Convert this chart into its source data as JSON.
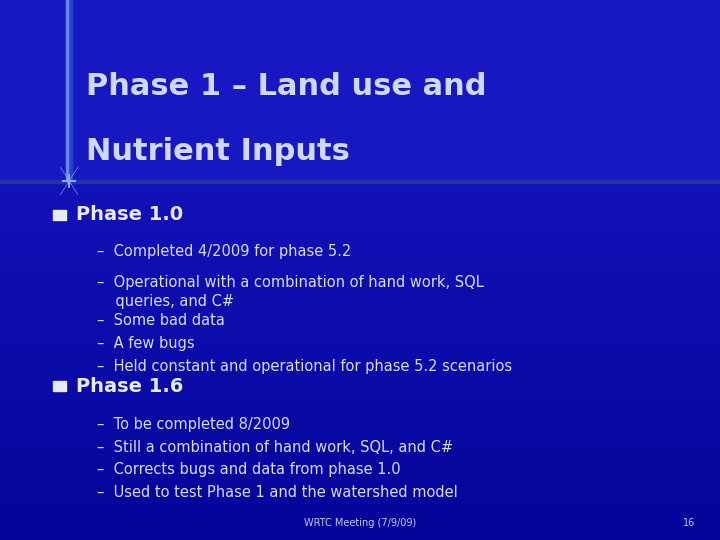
{
  "title_line1": "Phase 1 – Land use and",
  "title_line2": "Nutrient Inputs",
  "title_color": "#D0D8F8",
  "title_fontsize": 22,
  "bg_color": "#0A0AB0",
  "bg_top_color": "#1010C0",
  "bg_bottom_color": "#0505A0",
  "title_bg_color": "#1515C5",
  "separator_color": "#3355CC",
  "content_bg_color": "#0808A8",
  "bullet1_text": "Phase 1.0",
  "bullet2_text": "Phase 1.6",
  "bullet_fontsize": 14,
  "bullet_color": "#E8EAF8",
  "subbullet_color": "#D8DCF8",
  "subbullet_fontsize": 10.5,
  "bullet_square_color": "#E8EAF8",
  "sub1": [
    "Completed 4/2009 for phase 5.2",
    "Operational with a combination of hand work, SQL\n    queries, and C#",
    "Some bad data",
    "A few bugs",
    "Held constant and operational for phase 5.2 scenarios"
  ],
  "sub2": [
    "To be completed 8/2009",
    "Still a combination of hand work, SQL, and C#",
    "Corrects bugs and data from phase 1.0",
    "Used to test Phase 1 and the watershed model"
  ],
  "footer_text": "WRTC Meeting (7/9/09)",
  "footer_page": "16",
  "footer_color": "#C0C8E8",
  "footer_fontsize": 7,
  "accent_line_color": "#5577EE",
  "left_bar_color": "#2244CC",
  "cross_color": "#88AAFF"
}
